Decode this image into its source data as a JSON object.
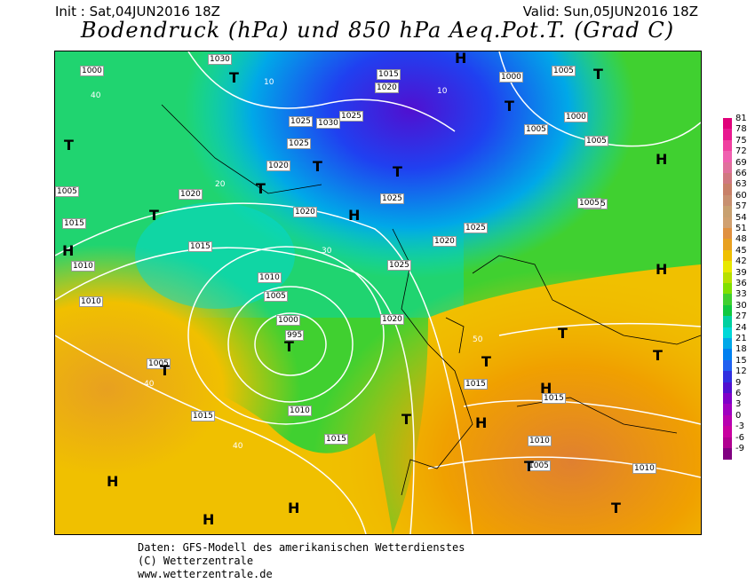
{
  "header": {
    "init": "Init : Sat,04JUN2016 18Z",
    "valid": "Valid: Sun,05JUN2016 18Z",
    "title": "Bodendruck (hPa) und 850 hPa Aeq.Pot.T. (Grad C)"
  },
  "map": {
    "isobar_labels": [
      "1030",
      "1000",
      "1015",
      "1020",
      "1025",
      "1030",
      "1025",
      "1025",
      "1020",
      "1020",
      "1020",
      "1025",
      "1025",
      "1020",
      "1015",
      "1005",
      "1010",
      "1015",
      "1010",
      "1010",
      "1005",
      "1000",
      "995",
      "1005",
      "1015",
      "1010",
      "1015",
      "1025",
      "1020",
      "1015",
      "1015",
      "1010",
      "1005",
      "1010",
      "1005",
      "1005",
      "1000",
      "1005",
      "1000",
      "1005",
      "1005"
    ],
    "temp_labels": [
      "40",
      "40",
      "10",
      "10",
      "20",
      "30",
      "40",
      "50"
    ],
    "pressure_centers": [
      "H",
      "T",
      "T",
      "T",
      "T",
      "T",
      "T",
      "T",
      "H",
      "H",
      "T",
      "T",
      "T",
      "T",
      "H",
      "T",
      "T",
      "H",
      "H",
      "T",
      "H",
      "H",
      "H",
      "H",
      "T",
      "T"
    ]
  },
  "legend": {
    "values": [
      "81",
      "78",
      "75",
      "72",
      "69",
      "66",
      "63",
      "60",
      "57",
      "54",
      "51",
      "48",
      "45",
      "42",
      "39",
      "36",
      "33",
      "30",
      "27",
      "24",
      "21",
      "18",
      "15",
      "12",
      "9",
      "6",
      "3",
      "0",
      "-3",
      "-6",
      "-9"
    ],
    "colors": [
      "#e0007a",
      "#e81890",
      "#f040a0",
      "#f060b0",
      "#e0709c",
      "#d07880",
      "#c88068",
      "#c89070",
      "#c8a070",
      "#d0a070",
      "#e09040",
      "#e8a020",
      "#f0c000",
      "#e8e800",
      "#b8e000",
      "#80e000",
      "#40d030",
      "#10c840",
      "#00d0a0",
      "#00d8d8",
      "#00a8e8",
      "#0080f0",
      "#2060f0",
      "#3030e0",
      "#5010d0",
      "#8000c8",
      "#a000c0",
      "#b800b0",
      "#c800a0",
      "#b00090",
      "#800080"
    ]
  },
  "footer": {
    "line1": "Daten: GFS-Modell des amerikanischen Wetterdienstes",
    "line2": "(C) Wetterzentrale",
    "line3": "www.wetterzentrale.de"
  }
}
